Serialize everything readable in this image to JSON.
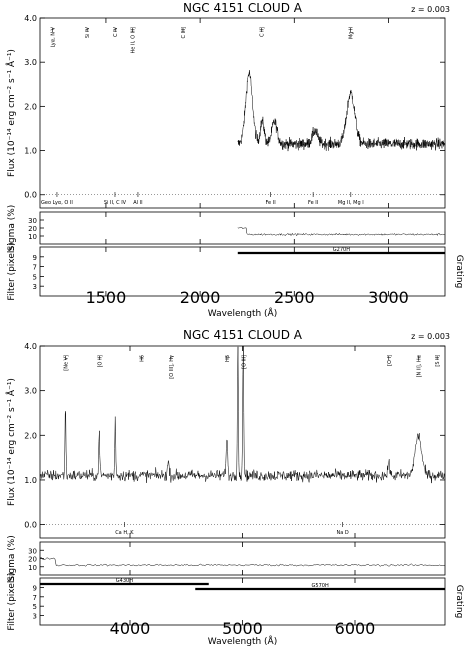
{
  "chart_data": [
    {
      "type": "line",
      "title": "NGC 4151 CLOUD A",
      "redshift_label": "z = 0.003",
      "xlabel": "Wavelength (Å)",
      "xlim": [
        1150,
        3300
      ],
      "xticks": [
        1500,
        2000,
        2500,
        3000
      ],
      "flux_panel": {
        "ylabel": "Flux (10⁻¹⁴ erg cm⁻² s⁻¹ Å⁻¹)",
        "ylim": [
          -0.3,
          4.0
        ],
        "yticks": [
          "0.0",
          "1.0",
          "2.0",
          "3.0",
          "4.0"
        ],
        "spectrum": {
          "x_start": 2200,
          "x_end": 3300,
          "baseline": 1.15,
          "features": [
            {
              "center": 2260,
              "peak": 1.6,
              "width": 25
            },
            {
              "center": 2330,
              "peak": 0.5,
              "width": 15
            },
            {
              "center": 2395,
              "peak": 0.5,
              "width": 20
            },
            {
              "center": 2610,
              "peak": 0.3,
              "width": 20
            },
            {
              "center": 2800,
              "peak": 1.15,
              "width": 30
            }
          ]
        },
        "emission_labels": [
          {
            "x": 1216,
            "text": "Lyα, N V"
          },
          {
            "x": 1400,
            "text": "Si IV"
          },
          {
            "x": 1549,
            "text": "C IV"
          },
          {
            "x": 1640,
            "text": "He II, O III]"
          },
          {
            "x": 1909,
            "text": "C III]"
          },
          {
            "x": 2326,
            "text": "C II]"
          },
          {
            "x": 2798,
            "text": "Mg II"
          }
        ],
        "absorption_labels": [
          {
            "x": 1240,
            "text": "Geo Lyα, O II"
          },
          {
            "x": 1548,
            "text": "Si II, C IV"
          },
          {
            "x": 1670,
            "text": "Al II"
          },
          {
            "x": 2374,
            "text": "Fe II"
          },
          {
            "x": 2600,
            "text": "Fe II"
          },
          {
            "x": 2800,
            "text": "Mg II, Mg I"
          }
        ]
      },
      "sigma_panel": {
        "ylabel": "Sigma (%)",
        "yticks": [
          "10",
          "20",
          "30"
        ],
        "ylim": [
          0,
          40
        ]
      },
      "filter_panel": {
        "ylabel": "Filter (pixels)",
        "right_label": "Grating",
        "yticks": [
          "3",
          "5",
          "7",
          "9"
        ],
        "gratings": [
          {
            "name": "G270H",
            "from": 2200,
            "to": 3300
          }
        ]
      }
    },
    {
      "type": "line",
      "title": "NGC 4151 CLOUD A",
      "redshift_label": "z = 0.003",
      "xlabel": "Wavelength (Å)",
      "xlim": [
        3200,
        6800
      ],
      "xticks": [
        4000,
        5000,
        6000
      ],
      "flux_panel": {
        "ylabel": "Flux (10⁻¹⁴ erg cm⁻² s⁻¹ Å⁻¹)",
        "ylim": [
          -0.3,
          4.0
        ],
        "yticks": [
          "0.0",
          "1.0",
          "2.0",
          "3.0",
          "4.0"
        ],
        "spectrum": {
          "x_start": 3200,
          "x_end": 6800,
          "baseline": 1.1,
          "features": [
            {
              "center": 3426,
              "peak": 1.55,
              "width": 6
            },
            {
              "center": 3727,
              "peak": 1.1,
              "width": 6
            },
            {
              "center": 3869,
              "peak": 1.35,
              "width": 6
            },
            {
              "center": 4340,
              "peak": 0.3,
              "width": 10
            },
            {
              "center": 4861,
              "peak": 0.8,
              "width": 10
            },
            {
              "center": 4959,
              "peak": 3.0,
              "width": 6
            },
            {
              "center": 5007,
              "peak": 3.0,
              "width": 6
            },
            {
              "center": 6300,
              "peak": 0.4,
              "width": 8
            },
            {
              "center": 6563,
              "peak": 0.9,
              "width": 40
            }
          ]
        },
        "emission_labels": [
          {
            "x": 3426,
            "text": "[Ne V]"
          },
          {
            "x": 3727,
            "text": "[O II]"
          },
          {
            "x": 4102,
            "text": "Hδ"
          },
          {
            "x": 4363,
            "text": "[O III], Hγ"
          },
          {
            "x": 4861,
            "text": "Hβ"
          },
          {
            "x": 5007,
            "text": "[O III]"
          },
          {
            "x": 6300,
            "text": "[O I]"
          },
          {
            "x": 6563,
            "text": "[N II], Hα"
          },
          {
            "x": 6730,
            "text": "[S II]"
          }
        ],
        "absorption_labels": [
          {
            "x": 3950,
            "text": "Ca H, K"
          },
          {
            "x": 5890,
            "text": "Na D"
          }
        ]
      },
      "sigma_panel": {
        "ylabel": "Sigma (%)",
        "yticks": [
          "10",
          "20",
          "30"
        ],
        "ylim": [
          0,
          40
        ]
      },
      "filter_panel": {
        "ylabel": "Filter (pixels)",
        "right_label": "Grating",
        "yticks": [
          "3",
          "5",
          "7",
          "9"
        ],
        "gratings": [
          {
            "name": "G430H",
            "from": 3200,
            "to": 4700
          },
          {
            "name": "G570H",
            "from": 4580,
            "to": 6800
          }
        ]
      }
    }
  ]
}
